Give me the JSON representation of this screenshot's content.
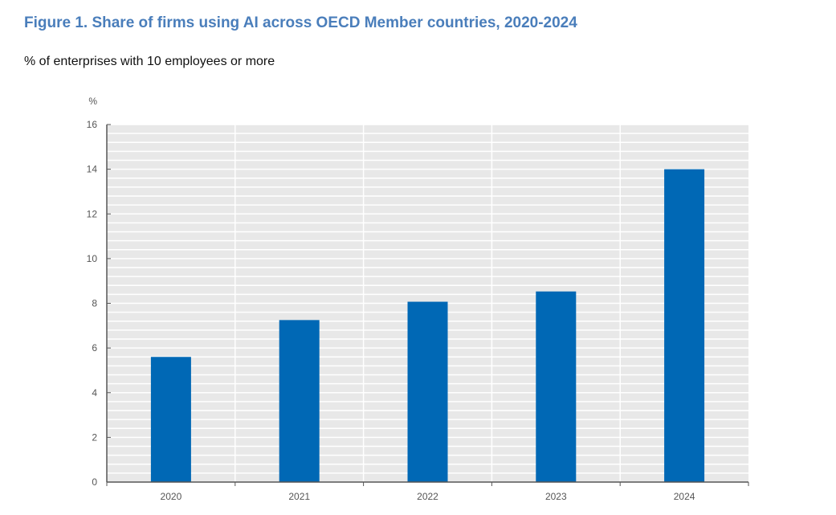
{
  "chart_data": {
    "type": "bar",
    "title": "Figure 1. Share of firms using AI across OECD Member countries, 2020-2024",
    "subtitle": "% of enterprises with 10 employees or more",
    "ylabel": "%",
    "xlabel": "",
    "categories": [
      "2020",
      "2021",
      "2022",
      "2023",
      "2024"
    ],
    "values": [
      5.6,
      7.25,
      8.07,
      8.53,
      14.0
    ],
    "ylim": [
      0,
      16
    ],
    "yticks": [
      0,
      2,
      4,
      6,
      8,
      10,
      12,
      14,
      16
    ],
    "grid": true,
    "legend": "none",
    "colors": {
      "bar": "#0068b5",
      "title": "#4a7ebb",
      "plot_background": "#e8e8e8",
      "gridline": "#ffffff"
    }
  }
}
